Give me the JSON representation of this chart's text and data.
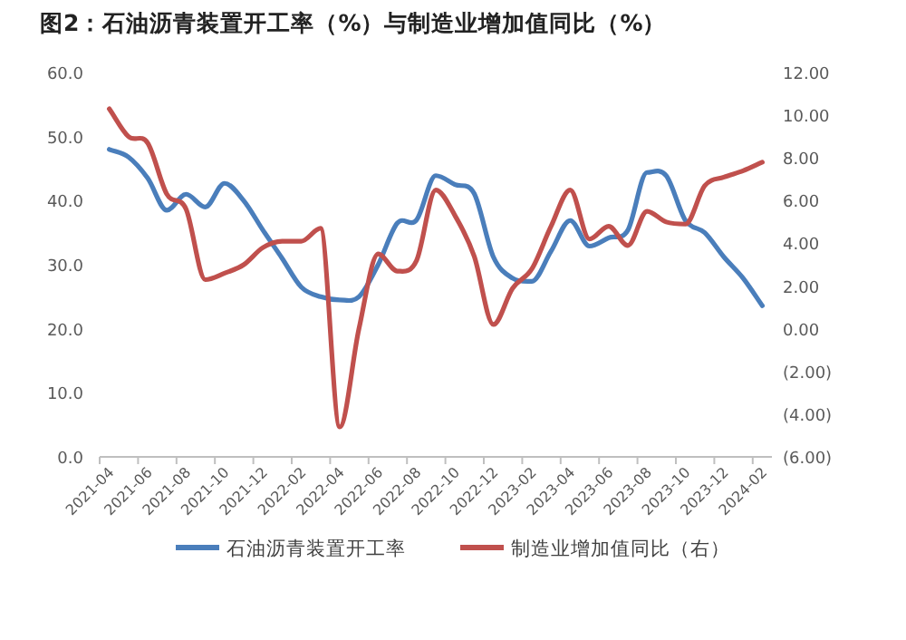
{
  "chart_data": {
    "type": "line",
    "title": "图2：石油沥青装置开工率（%）与制造业增加值同比（%）",
    "categories": [
      "2021-04",
      null,
      "2021-06",
      null,
      "2021-08",
      null,
      "2021-10",
      null,
      "2021-12",
      null,
      "2022-02",
      null,
      "2022-04",
      null,
      "2022-06",
      null,
      "2022-08",
      null,
      "2022-10",
      null,
      "2022-12",
      null,
      "2023-02",
      null,
      "2023-04",
      null,
      "2023-06",
      null,
      "2023-08",
      null,
      "2023-10",
      null,
      "2023-12",
      null,
      "2024-02"
    ],
    "series": [
      {
        "name": "石油沥青装置开工率",
        "color": "#4a7ebb",
        "values": [
          48.0,
          46.8,
          43.5,
          38.5,
          41.0,
          39.0,
          42.7,
          40.0,
          35.4,
          31.0,
          26.5,
          25.0,
          24.5,
          25.0,
          30.0,
          36.5,
          37.0,
          43.9,
          42.5,
          41.1,
          31.2,
          27.9,
          27.4,
          32.1,
          36.9,
          32.9,
          34.2,
          35.4,
          44.4,
          43.9,
          36.9,
          35.0,
          31.2,
          27.9,
          23.6
        ]
      },
      {
        "name": "制造业增加值同比（右）",
        "color": "#c0504d",
        "axis": "y2",
        "values": [
          10.3,
          9.0,
          8.7,
          6.3,
          5.6,
          2.3,
          2.6,
          3.0,
          3.8,
          4.1,
          4.1,
          4.7,
          -4.6,
          0.0,
          3.5,
          2.7,
          3.2,
          6.5,
          5.3,
          3.4,
          0.2,
          1.9,
          2.8,
          4.8,
          6.5,
          4.2,
          4.8,
          3.9,
          5.5,
          5.0,
          4.9,
          6.7,
          7.1,
          7.4,
          7.8
        ]
      }
    ],
    "ylim": [
      0,
      60
    ],
    "yticks": [
      {
        "value": 0,
        "label": "0.0"
      },
      {
        "value": 10,
        "label": "10.0"
      },
      {
        "value": 20,
        "label": "20.0"
      },
      {
        "value": 30,
        "label": "30.0"
      },
      {
        "value": 40,
        "label": "40.0"
      },
      {
        "value": 50,
        "label": "50.0"
      },
      {
        "value": 60,
        "label": "60.0"
      }
    ],
    "y2lim": [
      -6,
      12
    ],
    "y2ticks": [
      {
        "value": -6,
        "label": "(6.00)"
      },
      {
        "value": -4,
        "label": "(4.00)"
      },
      {
        "value": -2,
        "label": "(2.00)"
      },
      {
        "value": 0,
        "label": "0.00"
      },
      {
        "value": 2,
        "label": "2.00"
      },
      {
        "value": 4,
        "label": "4.00"
      },
      {
        "value": 6,
        "label": "6.00"
      },
      {
        "value": 8,
        "label": "8.00"
      },
      {
        "value": 10,
        "label": "10.00"
      },
      {
        "value": 12,
        "label": "12.00"
      }
    ],
    "legend": "bottom"
  }
}
